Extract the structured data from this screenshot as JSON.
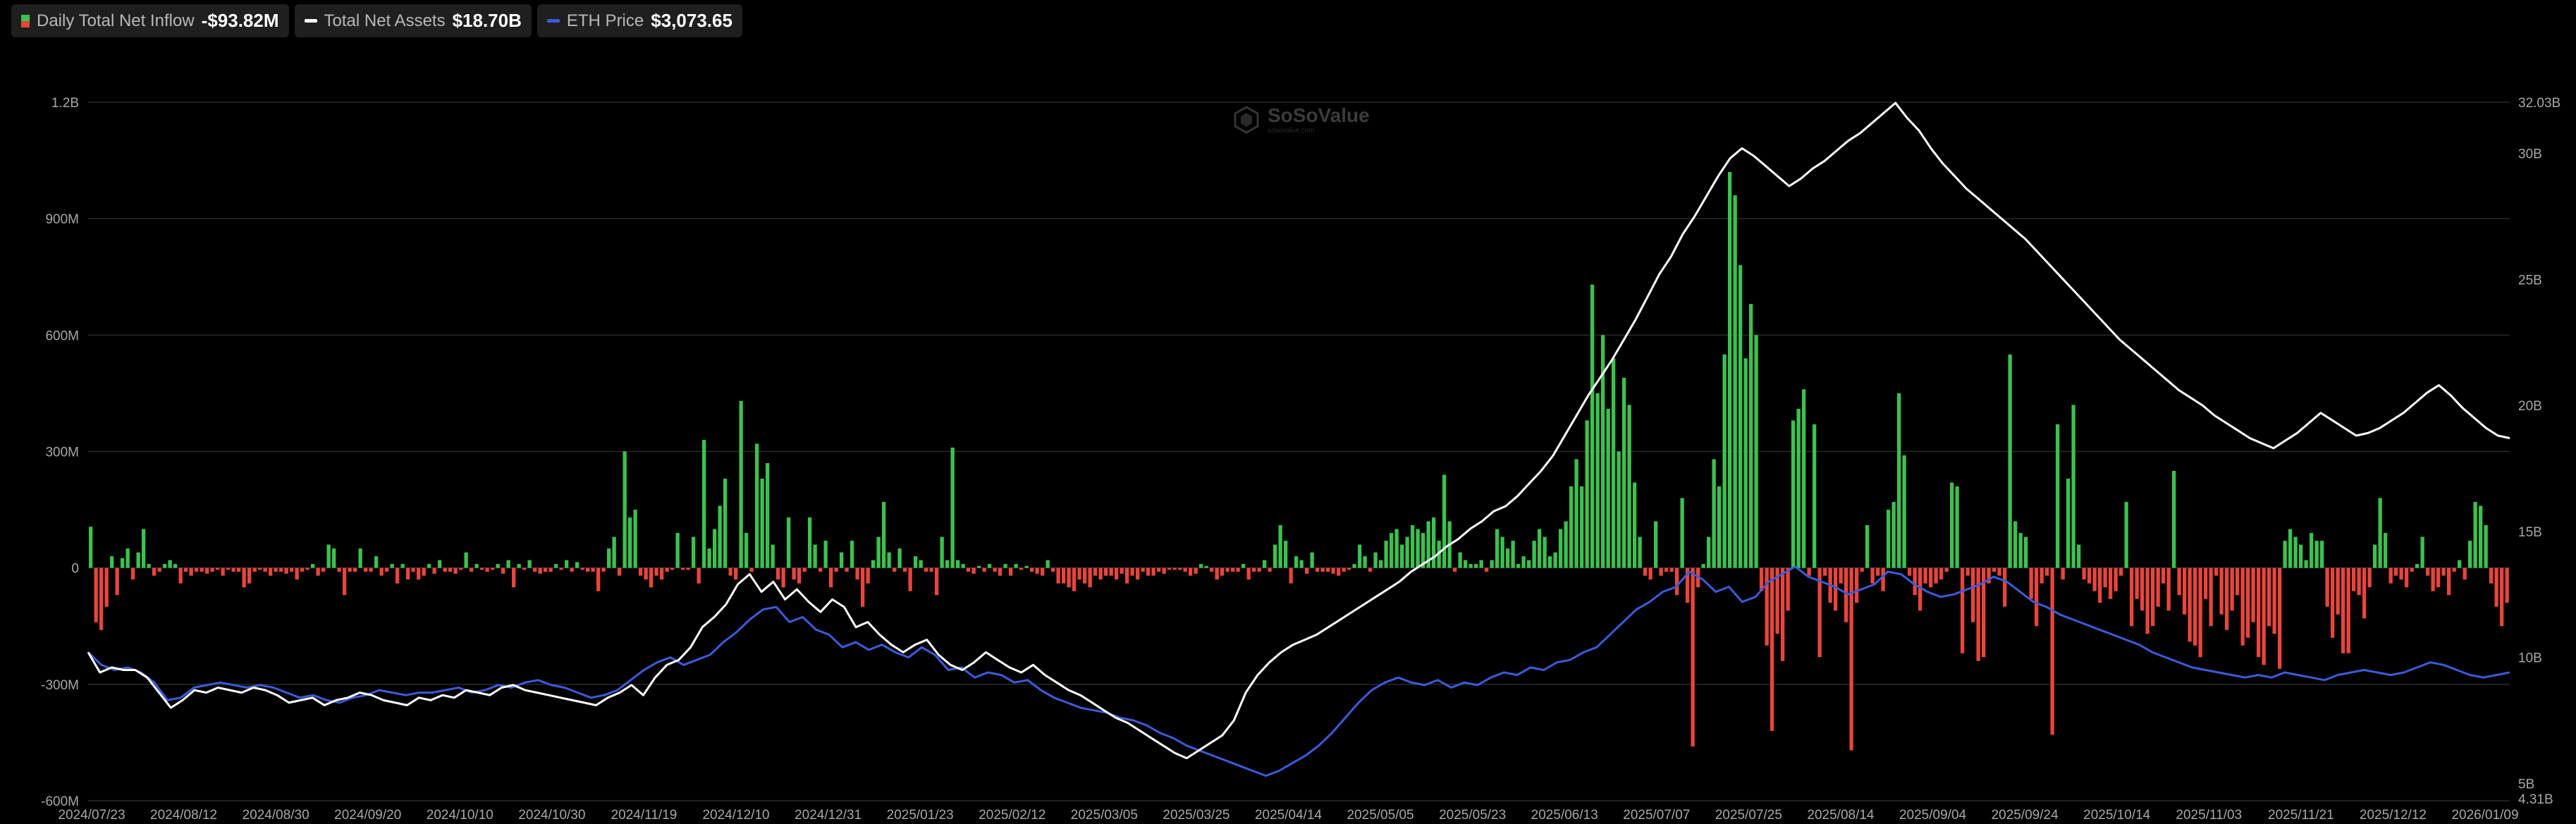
{
  "legend": [
    {
      "label": "Daily Total Net Inflow",
      "value": "-$93.82M",
      "swatch": "bar"
    },
    {
      "label": "Total Net Assets",
      "value": "$18.70B",
      "swatch": "line",
      "color": "#ffffff"
    },
    {
      "label": "ETH Price",
      "value": "$3,073.65",
      "swatch": "line",
      "color": "#3b5bdb"
    }
  ],
  "watermark": {
    "name": "SoSoValue",
    "sub": "sosovalue.com"
  },
  "colors": {
    "positive": "#3cc14f",
    "negative": "#e8453c",
    "assets": "#ffffff",
    "eth": "#3b5bdb",
    "grid": "#2b2b2b"
  },
  "chart_data": {
    "type": "bar+line",
    "x_tick_labels": [
      "2024/07/23",
      "2024/08/12",
      "2024/08/30",
      "2024/09/20",
      "2024/10/10",
      "2024/10/30",
      "2024/11/19",
      "2024/12/10",
      "2024/12/31",
      "2025/01/23",
      "2025/02/12",
      "2025/03/05",
      "2025/03/25",
      "2025/04/14",
      "2025/05/05",
      "2025/05/23",
      "2025/06/13",
      "2025/07/07",
      "2025/07/25",
      "2025/08/14",
      "2025/09/04",
      "2025/09/24",
      "2025/10/14",
      "2025/11/03",
      "2025/11/21",
      "2025/12/12",
      "2026/01/09"
    ],
    "y_left": {
      "label": "Daily Total Net Inflow",
      "ticks": [
        "-600M",
        "-300M",
        "0",
        "300M",
        "600M",
        "900M",
        "1.2B"
      ],
      "range": [
        -600,
        1200
      ],
      "unit": "M USD"
    },
    "y_right": {
      "label": "Total Net Assets",
      "ticks": [
        "5B",
        "10B",
        "15B",
        "20B",
        "25B",
        "30B",
        "32.03B"
      ],
      "min_label": "4.31B",
      "range": [
        4.31,
        32.03
      ],
      "unit": "B USD"
    },
    "series": [
      {
        "name": "Daily Total Net Inflow",
        "type": "bar",
        "unit": "M USD",
        "values": [
          106,
          -140,
          -160,
          -100,
          30,
          -70,
          25,
          50,
          -30,
          40,
          100,
          10,
          -20,
          -10,
          10,
          20,
          10,
          -40,
          -10,
          -20,
          -10,
          -10,
          -15,
          -10,
          -5,
          -20,
          -5,
          -10,
          -10,
          -50,
          -40,
          -10,
          -5,
          -10,
          -20,
          -10,
          -10,
          -15,
          -10,
          -30,
          -10,
          -5,
          10,
          -20,
          -10,
          60,
          50,
          -10,
          -70,
          -10,
          -10,
          50,
          -10,
          -10,
          30,
          -20,
          -10,
          10,
          -40,
          10,
          -30,
          -10,
          -30,
          -20,
          10,
          -15,
          20,
          -10,
          -10,
          -15,
          -5,
          40,
          -10,
          10,
          -5,
          -10,
          -5,
          10,
          -15,
          20,
          -50,
          10,
          -5,
          20,
          -10,
          -15,
          -10,
          -10,
          10,
          -5,
          20,
          -10,
          15,
          -5,
          -10,
          -10,
          -60,
          -10,
          50,
          80,
          -20,
          300,
          130,
          150,
          -20,
          -30,
          -50,
          -20,
          -30,
          -10,
          -5,
          90,
          -5,
          -5,
          80,
          -40,
          330,
          50,
          100,
          160,
          230,
          -20,
          -30,
          430,
          90,
          -10,
          320,
          230,
          270,
          60,
          -30,
          -50,
          130,
          -30,
          -40,
          -10,
          130,
          60,
          -10,
          70,
          -50,
          -10,
          40,
          -10,
          70,
          -30,
          -100,
          -40,
          20,
          80,
          170,
          40,
          -10,
          50,
          -10,
          -60,
          30,
          20,
          -10,
          -10,
          -70,
          80,
          20,
          310,
          20,
          10,
          -10,
          -15,
          5,
          -10,
          10,
          -10,
          -20,
          10,
          -20,
          10,
          -5,
          5,
          -10,
          -15,
          -20,
          20,
          -10,
          -40,
          -40,
          -50,
          -60,
          -30,
          -40,
          -50,
          -20,
          -30,
          -20,
          -20,
          -30,
          -15,
          -40,
          -20,
          -30,
          -10,
          -20,
          -20,
          -10,
          -15,
          -5,
          -5,
          -5,
          -10,
          -20,
          -15,
          10,
          5,
          -10,
          -30,
          -20,
          -10,
          -10,
          -10,
          10,
          -30,
          -10,
          -10,
          20,
          -10,
          60,
          110,
          70,
          -40,
          30,
          20,
          -15,
          40,
          -10,
          -10,
          -10,
          -15,
          -20,
          -10,
          -5,
          10,
          60,
          30,
          -10,
          40,
          20,
          70,
          90,
          100,
          60,
          80,
          110,
          100,
          90,
          120,
          130,
          70,
          240,
          120,
          -10,
          40,
          20,
          10,
          10,
          20,
          -10,
          20,
          100,
          80,
          50,
          70,
          10,
          30,
          20,
          70,
          100,
          80,
          30,
          40,
          100,
          120,
          210,
          280,
          210,
          380,
          730,
          450,
          600,
          410,
          540,
          300,
          490,
          420,
          220,
          80,
          -20,
          -30,
          120,
          -20,
          -10,
          -10,
          -70,
          180,
          -90,
          -460,
          -50,
          10,
          80,
          280,
          210,
          550,
          1020,
          960,
          780,
          540,
          680,
          600,
          -60,
          -200,
          -420,
          -170,
          -240,
          -110,
          380,
          410,
          460,
          -20,
          370,
          -230,
          -20,
          -90,
          -110,
          -40,
          -140,
          -470,
          -90,
          -10,
          110,
          -40,
          -20,
          -60,
          150,
          170,
          450,
          290,
          -20,
          -70,
          -110,
          -40,
          -50,
          -40,
          -30,
          -10,
          220,
          210,
          -220,
          -20,
          -140,
          -240,
          -230,
          -40,
          -10,
          -20,
          -100,
          550,
          120,
          90,
          80,
          -80,
          -150,
          -40,
          -20,
          -430,
          370,
          -30,
          230,
          420,
          60,
          -30,
          -40,
          -60,
          -90,
          -50,
          -80,
          -60,
          -20,
          170,
          -150,
          -80,
          -110,
          -170,
          -150,
          -100,
          -40,
          -110,
          250,
          -70,
          -120,
          -190,
          -200,
          -230,
          -80,
          -150,
          -20,
          -120,
          -160,
          -110,
          -70,
          -200,
          -180,
          -140,
          -230,
          -250,
          -150,
          -170,
          -260,
          70,
          100,
          80,
          60,
          20,
          90,
          70,
          70,
          -100,
          -180,
          -120,
          -220,
          -220,
          -60,
          -70,
          -130,
          -50,
          60,
          180,
          90,
          -40,
          -20,
          -30,
          -50,
          -10,
          10,
          80,
          -20,
          -60,
          -50,
          -20,
          -70,
          -10,
          20,
          -30,
          70,
          170,
          160,
          110,
          -40,
          -100,
          -150,
          -90
        ]
      },
      {
        "name": "Total Net Assets",
        "type": "line",
        "unit": "B USD",
        "values": [
          10.2,
          9.4,
          9.6,
          9.5,
          9.5,
          9.2,
          8.6,
          8.0,
          8.3,
          8.7,
          8.6,
          8.8,
          8.7,
          8.6,
          8.8,
          8.7,
          8.5,
          8.2,
          8.3,
          8.4,
          8.1,
          8.3,
          8.4,
          8.6,
          8.5,
          8.3,
          8.2,
          8.1,
          8.4,
          8.3,
          8.5,
          8.4,
          8.7,
          8.6,
          8.5,
          8.8,
          8.9,
          8.7,
          8.6,
          8.5,
          8.4,
          8.3,
          8.2,
          8.1,
          8.4,
          8.6,
          8.9,
          8.5,
          9.2,
          9.7,
          9.9,
          10.4,
          11.2,
          11.6,
          12.1,
          12.9,
          13.3,
          12.6,
          13.0,
          12.3,
          12.7,
          12.2,
          11.8,
          12.3,
          12.0,
          11.2,
          11.4,
          10.9,
          10.5,
          10.2,
          10.5,
          10.7,
          10.1,
          9.7,
          9.5,
          9.8,
          10.2,
          9.9,
          9.6,
          9.4,
          9.7,
          9.3,
          9.0,
          8.7,
          8.5,
          8.2,
          7.9,
          7.6,
          7.4,
          7.1,
          6.8,
          6.5,
          6.2,
          6.0,
          6.3,
          6.6,
          6.9,
          7.5,
          8.6,
          9.3,
          9.8,
          10.2,
          10.5,
          10.7,
          10.9,
          11.2,
          11.5,
          11.8,
          12.1,
          12.4,
          12.7,
          13.0,
          13.4,
          13.7,
          14.0,
          14.4,
          14.7,
          15.1,
          15.4,
          15.8,
          16.0,
          16.4,
          16.9,
          17.4,
          18.0,
          18.8,
          19.6,
          20.4,
          21.1,
          21.8,
          22.6,
          23.4,
          24.3,
          25.2,
          25.9,
          26.8,
          27.5,
          28.3,
          29.1,
          29.8,
          30.2,
          29.9,
          29.5,
          29.1,
          28.7,
          29.0,
          29.4,
          29.7,
          30.1,
          30.5,
          30.8,
          31.2,
          31.6,
          32.0,
          31.4,
          30.9,
          30.2,
          29.6,
          29.1,
          28.6,
          28.2,
          27.8,
          27.4,
          27.0,
          26.6,
          26.1,
          25.6,
          25.1,
          24.6,
          24.1,
          23.6,
          23.1,
          22.6,
          22.2,
          21.8,
          21.4,
          21.0,
          20.6,
          20.3,
          20.0,
          19.6,
          19.3,
          19.0,
          18.7,
          18.5,
          18.3,
          18.6,
          18.9,
          19.3,
          19.7,
          19.4,
          19.1,
          18.8,
          18.9,
          19.1,
          19.4,
          19.7,
          20.1,
          20.5,
          20.8,
          20.4,
          19.9,
          19.5,
          19.1,
          18.8,
          18.7
        ],
        "x_start_index": 0
      },
      {
        "name": "ETH Price",
        "type": "line",
        "values": [
          10.2,
          9.7,
          9.5,
          9.6,
          9.4,
          9.0,
          8.3,
          8.4,
          8.8,
          8.9,
          9.0,
          8.9,
          8.8,
          8.9,
          8.8,
          8.6,
          8.4,
          8.5,
          8.3,
          8.2,
          8.4,
          8.5,
          8.7,
          8.6,
          8.5,
          8.6,
          8.6,
          8.7,
          8.8,
          8.6,
          8.7,
          8.9,
          8.8,
          9.0,
          9.1,
          8.9,
          8.8,
          8.6,
          8.4,
          8.5,
          8.7,
          9.1,
          9.5,
          9.8,
          10.0,
          9.7,
          9.9,
          10.1,
          10.6,
          11.0,
          11.5,
          11.9,
          12.0,
          11.4,
          11.6,
          11.1,
          10.9,
          10.4,
          10.6,
          10.3,
          10.5,
          10.2,
          10.0,
          10.4,
          10.1,
          9.5,
          9.6,
          9.2,
          9.4,
          9.3,
          9.0,
          9.1,
          8.7,
          8.4,
          8.2,
          8.0,
          7.9,
          7.8,
          7.6,
          7.5,
          7.3,
          7.0,
          6.8,
          6.5,
          6.3,
          6.1,
          5.9,
          5.7,
          5.5,
          5.3,
          5.5,
          5.8,
          6.1,
          6.5,
          7.0,
          7.6,
          8.2,
          8.7,
          9.0,
          9.2,
          9.0,
          8.9,
          9.1,
          8.8,
          9.0,
          8.9,
          9.2,
          9.4,
          9.3,
          9.6,
          9.5,
          9.8,
          9.9,
          10.2,
          10.4,
          10.9,
          11.4,
          11.9,
          12.2,
          12.6,
          12.8,
          13.4,
          13.1,
          12.6,
          12.8,
          12.2,
          12.4,
          13.0,
          13.3,
          13.6,
          13.2,
          13.0,
          12.8,
          12.5,
          12.7,
          12.9,
          13.4,
          13.3,
          12.9,
          12.6,
          12.4,
          12.5,
          12.7,
          12.9,
          13.2,
          13.0,
          12.6,
          12.2,
          12.0,
          11.7,
          11.5,
          11.3,
          11.1,
          10.9,
          10.7,
          10.5,
          10.2,
          10.0,
          9.8,
          9.6,
          9.5,
          9.4,
          9.3,
          9.2,
          9.3,
          9.2,
          9.4,
          9.3,
          9.2,
          9.1,
          9.3,
          9.4,
          9.5,
          9.4,
          9.3,
          9.4,
          9.6,
          9.8,
          9.7,
          9.5,
          9.3,
          9.2,
          9.3,
          9.4
        ]
      }
    ],
    "legend_position": "top-left",
    "grid": "horizontal"
  }
}
